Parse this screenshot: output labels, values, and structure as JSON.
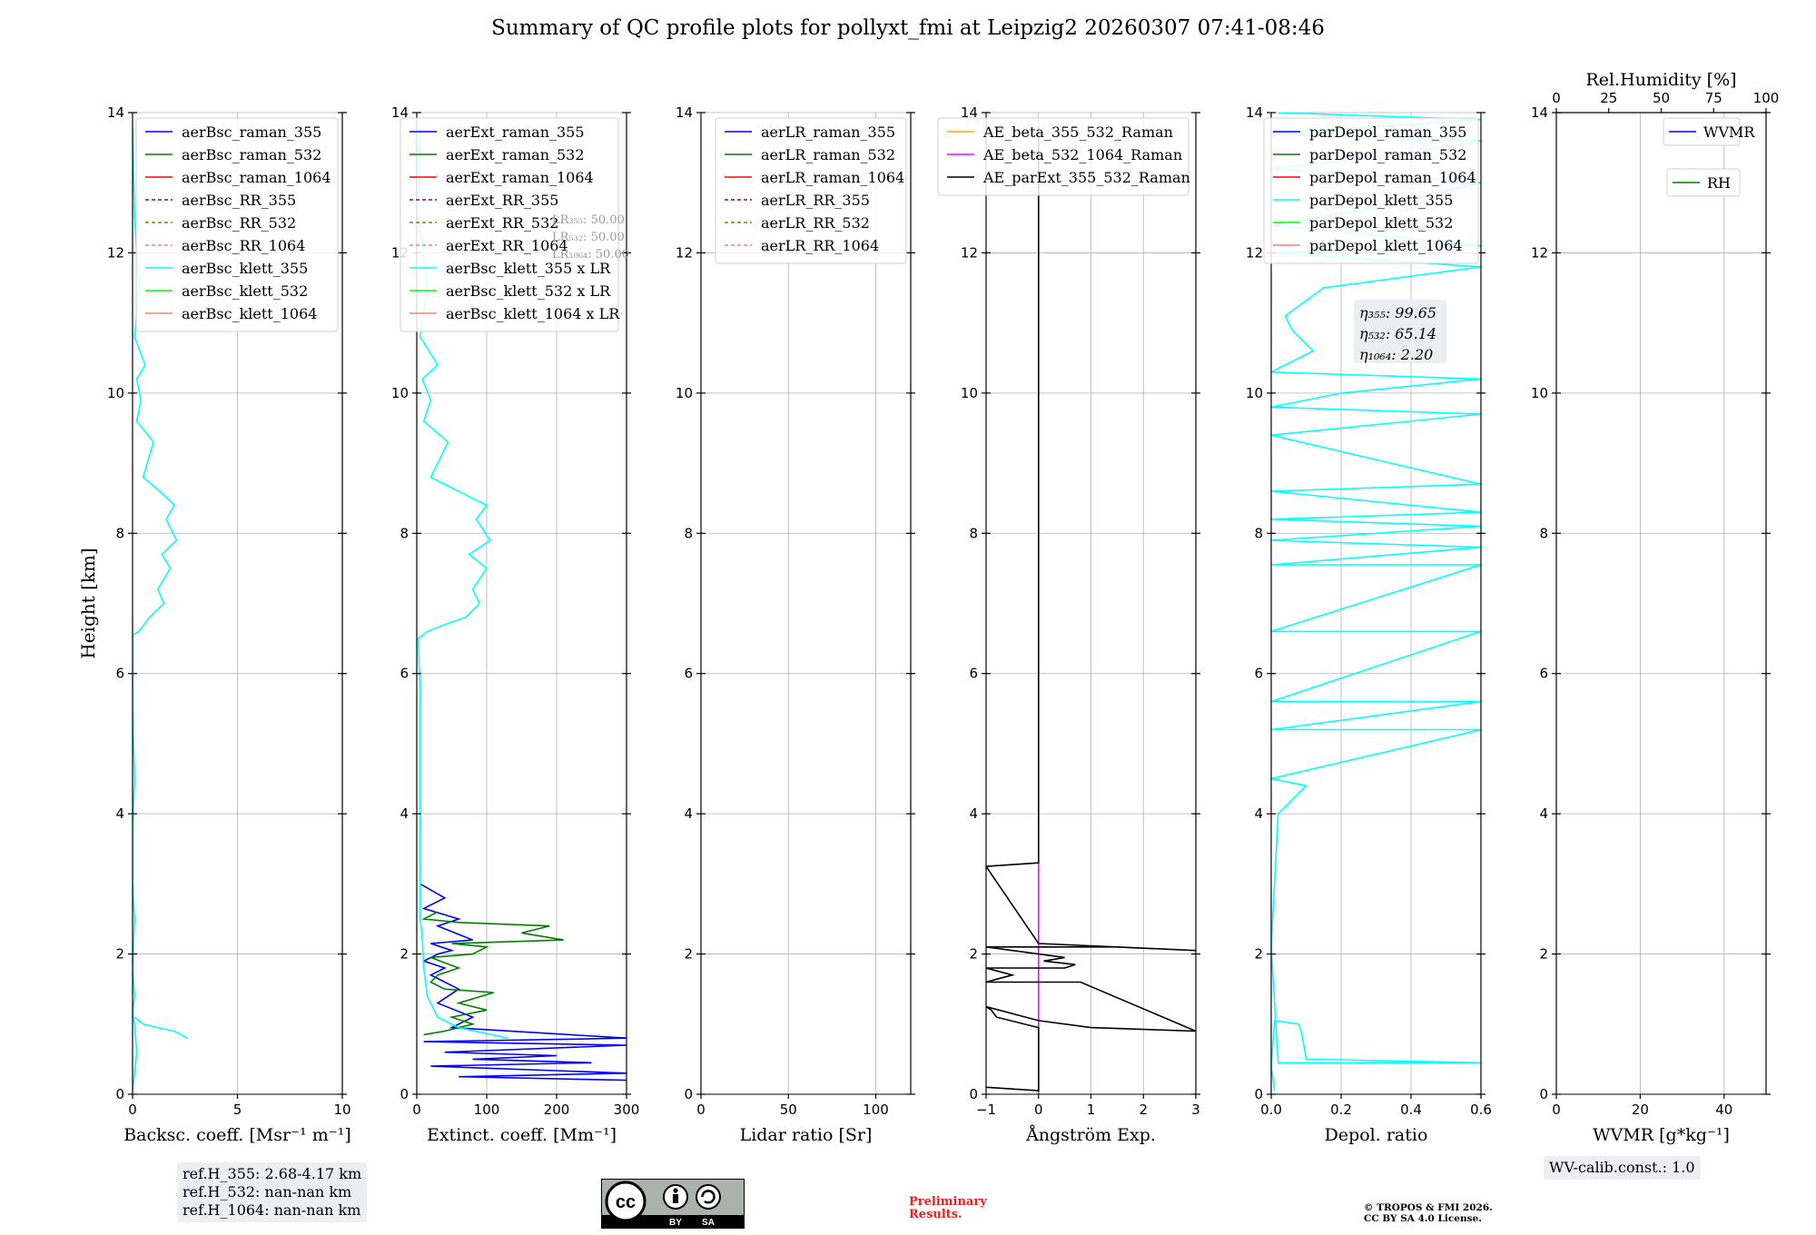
{
  "title": "Summary of QC profile plots for pollyxt_fmi at Leipzig2 20260307 07:41-08:46",
  "y_axis_label": "Height [km]",
  "chart_data": [
    {
      "type": "line",
      "id": "backscatter",
      "xlabel": "Backsc. coeff. [Msr⁻¹ m⁻¹]",
      "xlim": [
        0,
        10
      ],
      "ylim": [
        0,
        14
      ],
      "xticks": [
        0,
        5,
        10
      ],
      "yticks": [
        0,
        2,
        4,
        6,
        8,
        10,
        12,
        14
      ],
      "grid": true,
      "legend_position": "top-left",
      "legend": [
        {
          "label": "aerBsc_raman_355",
          "color": "#0000ff",
          "style": "solid"
        },
        {
          "label": "aerBsc_raman_532",
          "color": "#008000",
          "style": "solid"
        },
        {
          "label": "aerBsc_raman_1064",
          "color": "#ff0000",
          "style": "solid"
        },
        {
          "label": "aerBsc_RR_355",
          "color": "#800080",
          "style": "dashed"
        },
        {
          "label": "aerBsc_RR_532",
          "color": "#808000",
          "style": "dashed"
        },
        {
          "label": "aerBsc_RR_1064",
          "color": "#fa8072",
          "style": "dashed"
        },
        {
          "label": "aerBsc_klett_355",
          "color": "#00ffff",
          "style": "solid"
        },
        {
          "label": "aerBsc_klett_532",
          "color": "#00ff00",
          "style": "solid"
        },
        {
          "label": "aerBsc_klett_1064",
          "color": "#fa8072",
          "style": "solid"
        }
      ],
      "series": [
        {
          "name": "aerBsc_klett_355",
          "color": "#00ffff",
          "x": [
            0.0,
            0.1,
            0.2,
            0.1,
            0.0,
            0.1,
            0.0,
            0.1,
            0.0,
            0.0,
            0.1,
            0.0,
            0.0,
            0.0,
            0.0,
            0.0,
            0.3,
            0.8,
            1.5,
            1.2,
            1.8,
            1.4,
            2.1,
            1.6,
            2.0,
            1.3,
            0.5,
            1.0,
            0.2,
            0.4,
            0.2,
            0.6,
            0.1,
            0.3,
            0.1,
            0.0
          ],
          "y": [
            0.05,
            0.3,
            0.6,
            1.0,
            1.15,
            1.4,
            1.8,
            2.5,
            3.0,
            3.8,
            4.5,
            5.5,
            5.7,
            6.2,
            6.5,
            6.55,
            6.6,
            6.8,
            7.0,
            7.2,
            7.5,
            7.7,
            7.9,
            8.2,
            8.4,
            8.6,
            8.8,
            9.3,
            9.6,
            9.9,
            10.2,
            10.4,
            10.8,
            11.5,
            12.5,
            13.8
          ]
        },
        {
          "name": "aerBsc_klett_355_lowlayer",
          "color": "#00ffff",
          "x": [
            0.1,
            0.5,
            1.2,
            2.0,
            2.6
          ],
          "y": [
            1.1,
            1.0,
            0.95,
            0.9,
            0.8
          ]
        }
      ],
      "annotation_box": [
        "ref.H_355: 2.68-4.17 km",
        "ref.H_532: nan-nan km",
        "ref.H_1064: nan-nan km"
      ]
    },
    {
      "type": "line",
      "id": "extinction",
      "xlabel": "Extinct. coeff. [Mm⁻¹]",
      "xlim": [
        0,
        300
      ],
      "ylim": [
        0,
        14
      ],
      "xticks": [
        0,
        100,
        200,
        300
      ],
      "yticks": [
        0,
        2,
        4,
        6,
        8,
        10,
        12,
        14
      ],
      "grid": true,
      "legend_position": "top-right",
      "legend": [
        {
          "label": "aerExt_raman_355",
          "color": "#0000ff",
          "style": "solid"
        },
        {
          "label": "aerExt_raman_532",
          "color": "#008000",
          "style": "solid"
        },
        {
          "label": "aerExt_raman_1064",
          "color": "#ff0000",
          "style": "solid"
        },
        {
          "label": "aerExt_RR_355",
          "color": "#800080",
          "style": "dashed"
        },
        {
          "label": "aerExt_RR_532",
          "color": "#808000",
          "style": "dashed"
        },
        {
          "label": "aerExt_RR_1064",
          "color": "#fa8072",
          "style": "dashed"
        },
        {
          "label": "aerBsc_klett_355 x LR",
          "color": "#00ffff",
          "style": "solid"
        },
        {
          "label": "aerBsc_klett_532 x LR",
          "color": "#00ff00",
          "style": "solid"
        },
        {
          "label": "aerBsc_klett_1064 x LR",
          "color": "#fa8072",
          "style": "solid"
        }
      ],
      "lr_labels": [
        "LR₃₅₅: 50.00",
        "LR₅₃₂: 50.00",
        "LR₁₀₆₄: 50.00"
      ],
      "series": [
        {
          "name": "aerExt_raman_355",
          "color": "#0000ff",
          "x": [
            300,
            60,
            300,
            20,
            250,
            80,
            200,
            40,
            300,
            10,
            300,
            50,
            80,
            30,
            60,
            20,
            40,
            10,
            30,
            50,
            20,
            80,
            30,
            60,
            10,
            40,
            5
          ],
          "y": [
            0.2,
            0.25,
            0.3,
            0.4,
            0.45,
            0.5,
            0.55,
            0.6,
            0.7,
            0.75,
            0.8,
            0.95,
            1.1,
            1.3,
            1.5,
            1.7,
            1.8,
            1.9,
            2.0,
            2.05,
            2.15,
            2.2,
            2.4,
            2.5,
            2.65,
            2.8,
            3.0
          ]
        },
        {
          "name": "aerExt_raman_532",
          "color": "#008000",
          "x": [
            10,
            40,
            80,
            50,
            100,
            60,
            110,
            40,
            20,
            30,
            60,
            20,
            80,
            100,
            50,
            210,
            150,
            190,
            60,
            10,
            30
          ],
          "y": [
            0.85,
            0.9,
            1.0,
            1.1,
            1.2,
            1.3,
            1.45,
            1.5,
            1.6,
            1.7,
            1.8,
            1.95,
            2.0,
            2.1,
            2.15,
            2.2,
            2.3,
            2.4,
            2.45,
            2.5,
            2.6
          ]
        },
        {
          "name": "aerBsc_klett_355 x LR",
          "color": "#00ffff",
          "x": [
            130,
            60,
            30,
            15,
            10,
            8,
            5,
            5,
            5,
            5,
            5,
            5,
            3,
            2,
            15,
            40,
            70,
            90,
            80,
            100,
            75,
            105,
            85,
            100,
            60,
            20,
            45,
            10,
            20,
            8,
            30,
            5,
            15,
            3,
            5
          ],
          "y": [
            0.8,
            0.95,
            1.1,
            1.4,
            1.8,
            2.2,
            2.5,
            3.0,
            3.8,
            4.5,
            5.5,
            5.7,
            6.2,
            6.5,
            6.6,
            6.7,
            6.8,
            7.0,
            7.2,
            7.5,
            7.7,
            7.9,
            8.2,
            8.4,
            8.6,
            8.8,
            9.3,
            9.6,
            9.9,
            10.2,
            10.4,
            10.8,
            11.5,
            12.5,
            13.8
          ]
        }
      ]
    },
    {
      "type": "line",
      "id": "lidar_ratio",
      "xlabel": "Lidar ratio [Sr]",
      "xlim": [
        0,
        120
      ],
      "ylim": [
        0,
        14
      ],
      "xticks": [
        0,
        50,
        100
      ],
      "yticks": [
        0,
        2,
        4,
        6,
        8,
        10,
        12,
        14
      ],
      "grid": true,
      "legend_position": "top-right",
      "legend": [
        {
          "label": "aerLR_raman_355",
          "color": "#0000ff",
          "style": "solid"
        },
        {
          "label": "aerLR_raman_532",
          "color": "#008000",
          "style": "solid"
        },
        {
          "label": "aerLR_raman_1064",
          "color": "#ff0000",
          "style": "solid"
        },
        {
          "label": "aerLR_RR_355",
          "color": "#800080",
          "style": "dashed"
        },
        {
          "label": "aerLR_RR_532",
          "color": "#808000",
          "style": "dashed"
        },
        {
          "label": "aerLR_RR_1064",
          "color": "#fa8072",
          "style": "dashed"
        }
      ],
      "series": []
    },
    {
      "type": "line",
      "id": "angstrom",
      "xlabel": "Ångström Exp.",
      "xlim": [
        -1,
        3
      ],
      "ylim": [
        0,
        14
      ],
      "xticks": [
        -1,
        0,
        1,
        2,
        3
      ],
      "xtick_labels": [
        "−1",
        "0",
        "1",
        "2",
        "3"
      ],
      "yticks": [
        0,
        2,
        4,
        6,
        8,
        10,
        12,
        14
      ],
      "grid": true,
      "legend_position": "top-right",
      "legend": [
        {
          "label": "AE_beta_355_532_Raman",
          "color": "#ffa500",
          "style": "solid"
        },
        {
          "label": "AE_beta_532_1064_Raman",
          "color": "#ff00ff",
          "style": "solid"
        },
        {
          "label": "AE_parExt_355_532_Raman",
          "color": "#000000",
          "style": "solid"
        }
      ],
      "series": [
        {
          "name": "AE_beta_532_1064_Raman",
          "color": "#ff00ff",
          "x": [
            0,
            0
          ],
          "y": [
            0,
            3.3
          ]
        },
        {
          "name": "AE_parExt_355_532_Raman",
          "color": "#000000",
          "x": [
            -1,
            0,
            0,
            -0.8,
            -0.9,
            -1,
            0,
            1,
            3,
            0.8,
            0,
            -1,
            -0.5,
            -1,
            0.5,
            0.7,
            0.1,
            0.5,
            -1,
            1.5,
            3,
            0,
            -1,
            0,
            0
          ],
          "y": [
            0.1,
            0.05,
            0.95,
            1.1,
            1.2,
            1.25,
            1.05,
            0.95,
            0.9,
            1.6,
            1.6,
            1.6,
            1.7,
            1.8,
            1.8,
            1.85,
            1.9,
            1.95,
            2.1,
            2.1,
            2.05,
            2.15,
            3.25,
            3.3,
            13.8
          ]
        }
      ]
    },
    {
      "type": "line",
      "id": "depol",
      "xlabel": "Depol. ratio",
      "xlim": [
        0,
        0.6
      ],
      "ylim": [
        0,
        14
      ],
      "xticks": [
        0,
        0.2,
        0.4,
        0.6
      ],
      "xtick_labels": [
        "0.0",
        "0.2",
        "0.4",
        "0.6"
      ],
      "yticks": [
        0,
        2,
        4,
        6,
        8,
        10,
        12,
        14
      ],
      "grid": true,
      "legend_position": "top-left",
      "legend": [
        {
          "label": "parDepol_raman_355",
          "color": "#0000ff",
          "style": "solid"
        },
        {
          "label": "parDepol_raman_532",
          "color": "#008000",
          "style": "solid"
        },
        {
          "label": "parDepol_raman_1064",
          "color": "#ff0000",
          "style": "solid"
        },
        {
          "label": "parDepol_klett_355",
          "color": "#00ffff",
          "style": "solid"
        },
        {
          "label": "parDepol_klett_532",
          "color": "#00ff00",
          "style": "solid"
        },
        {
          "label": "parDepol_klett_1064",
          "color": "#fa8072",
          "style": "solid"
        }
      ],
      "eta_labels": [
        "η₃₅₅: 99.65",
        "η₅₃₂: 65.14",
        "η₁₀₆₄: 2.20"
      ],
      "series": [
        {
          "name": "parDepol_klett_355",
          "color": "#00ffff",
          "x": [
            0.01,
            0.0,
            0.01,
            0.08,
            0.09,
            0.1,
            0.6,
            0.02,
            0.0,
            0.02,
            0.08,
            0.1,
            0.0,
            0.6,
            0.0,
            0.6,
            0.0,
            0.6,
            0.0,
            0.6,
            0.0,
            0.6,
            0.0,
            0.6,
            0.0,
            0.6,
            0.0,
            0.6,
            0.0,
            0.6,
            0.0,
            0.2,
            0.6,
            0.0,
            0.12,
            0.06,
            0.04,
            0.15,
            0.6,
            0.0,
            0.6,
            0.0,
            0.25,
            0.6,
            0.0,
            0.35,
            0.6,
            0.0,
            0.6,
            0.02
          ],
          "y": [
            0.05,
            0.4,
            1.05,
            1.0,
            0.8,
            0.5,
            0.45,
            0.45,
            2.1,
            4.0,
            4.3,
            4.4,
            4.5,
            5.2,
            5.2,
            5.6,
            5.6,
            6.6,
            6.6,
            7.55,
            7.55,
            7.8,
            7.9,
            8.1,
            8.2,
            8.3,
            8.6,
            8.7,
            9.4,
            9.7,
            9.8,
            10.0,
            10.2,
            10.3,
            10.6,
            10.9,
            11.1,
            11.5,
            11.8,
            12.0,
            12.1,
            12.4,
            12.6,
            13.0,
            13.2,
            13.4,
            13.6,
            13.7,
            13.9,
            14.0
          ]
        }
      ]
    },
    {
      "type": "line",
      "id": "wvmr",
      "xlabel": "WVMR [g*kg⁻¹]",
      "xlim": [
        0,
        50
      ],
      "ylim": [
        0,
        14
      ],
      "xticks": [
        0,
        20,
        40
      ],
      "yticks": [
        0,
        2,
        4,
        6,
        8,
        10,
        12,
        14
      ],
      "top_xlabel": "Rel.Humidity [%]",
      "top_xlim": [
        0,
        100
      ],
      "top_xticks": [
        0,
        25,
        50,
        75,
        100
      ],
      "grid": true,
      "legend": [
        {
          "label": "WVMR",
          "color": "#0000ff",
          "style": "solid"
        },
        {
          "label": "RH",
          "color": "#008000",
          "style": "solid"
        }
      ],
      "annotation_box": [
        "WV-calib.const.: 1.0"
      ],
      "series": []
    }
  ],
  "footer": {
    "preliminary": [
      "Preliminary",
      "Results."
    ],
    "copyright": [
      "© TROPOS & FMI 2026.",
      "CC BY SA 4.0 License."
    ],
    "license_badge": {
      "by": "BY",
      "sa": "SA"
    }
  }
}
